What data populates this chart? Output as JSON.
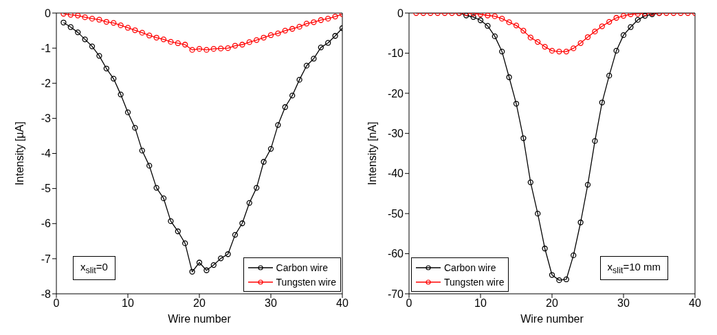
{
  "chart_data": [
    {
      "type": "line",
      "xlabel": "Wire number",
      "ylabel": "Intensity [µA]",
      "xlim": [
        0,
        40
      ],
      "xticks": [
        0,
        10,
        20,
        30,
        40
      ],
      "ylim": [
        -8,
        0
      ],
      "yticks": [
        -8,
        -7,
        -6,
        -5,
        -4,
        -3,
        -2,
        -1,
        0
      ],
      "grid": false,
      "legend": "bottom right",
      "marker": "circle",
      "annotations": [
        "x$_{slit}$=0"
      ],
      "x": [
        1,
        2,
        3,
        4,
        5,
        6,
        7,
        8,
        9,
        10,
        11,
        12,
        13,
        14,
        15,
        16,
        17,
        18,
        19,
        20,
        21,
        22,
        23,
        24,
        25,
        26,
        27,
        28,
        29,
        30,
        31,
        32,
        33,
        34,
        35,
        36,
        37,
        38,
        39,
        40
      ],
      "series": [
        {
          "name": "Carbon wire",
          "color": "#000000",
          "values": [
            -0.27,
            -0.4,
            -0.55,
            -0.75,
            -0.95,
            -1.22,
            -1.58,
            -1.87,
            -2.32,
            -2.83,
            -3.27,
            -3.92,
            -4.35,
            -4.98,
            -5.28,
            -5.93,
            -6.22,
            -6.56,
            -7.37,
            -7.11,
            -7.33,
            -7.18,
            -6.99,
            -6.87,
            -6.32,
            -5.99,
            -5.41,
            -4.98,
            -4.24,
            -3.87,
            -3.19,
            -2.68,
            -2.35,
            -1.9,
            -1.5,
            -1.3,
            -0.98,
            -0.85,
            -0.65,
            -0.43
          ]
        },
        {
          "name": "Tungsten wire",
          "color": "#ff0000",
          "values": [
            -0.02,
            -0.05,
            -0.07,
            -0.12,
            -0.16,
            -0.19,
            -0.25,
            -0.28,
            -0.35,
            -0.42,
            -0.49,
            -0.56,
            -0.64,
            -0.7,
            -0.75,
            -0.82,
            -0.86,
            -0.9,
            -1.05,
            -1.02,
            -1.05,
            -1.02,
            -1.01,
            -1.0,
            -0.93,
            -0.9,
            -0.83,
            -0.77,
            -0.7,
            -0.63,
            -0.58,
            -0.5,
            -0.45,
            -0.39,
            -0.3,
            -0.26,
            -0.2,
            -0.16,
            -0.1,
            -0.03
          ]
        }
      ]
    },
    {
      "type": "line",
      "xlabel": "Wire number",
      "ylabel": "Intensity [nA]",
      "xlim": [
        0,
        40
      ],
      "xticks": [
        0,
        10,
        20,
        30,
        40
      ],
      "ylim": [
        -70,
        0
      ],
      "yticks": [
        -70,
        -60,
        -50,
        -40,
        -30,
        -20,
        -10,
        0
      ],
      "grid": false,
      "legend": "bottom left",
      "marker": "circle",
      "annotations": [
        "x$_{slit}$=10 mm"
      ],
      "x": [
        1,
        2,
        3,
        4,
        5,
        6,
        7,
        8,
        9,
        10,
        11,
        12,
        13,
        14,
        15,
        16,
        17,
        18,
        19,
        20,
        21,
        22,
        23,
        24,
        25,
        26,
        27,
        28,
        29,
        30,
        31,
        32,
        33,
        34,
        35,
        36,
        37,
        38,
        39,
        40
      ],
      "series": [
        {
          "name": "Carbon wire",
          "color": "#000000",
          "values": [
            null,
            null,
            null,
            null,
            null,
            null,
            0,
            -0.6,
            -1,
            -1.8,
            -3.2,
            -5.8,
            -9.6,
            -16,
            -22.6,
            -31.2,
            -42.2,
            -50,
            -58.7,
            -65.3,
            -66.6,
            -66.4,
            -60.4,
            -52.2,
            -42.8,
            -31.9,
            -22.3,
            -15.6,
            -9.4,
            -5.5,
            -3.5,
            -1.7,
            -0.7,
            -0.3,
            0,
            null,
            null,
            null,
            null,
            null
          ]
        },
        {
          "name": "Tungsten wire",
          "color": "#ff0000",
          "values": [
            0,
            0,
            0,
            0,
            0,
            0,
            0,
            0,
            -0.1,
            -0.3,
            -0.6,
            -0.8,
            -1.4,
            -2.3,
            -3.1,
            -4.4,
            -6.1,
            -7.2,
            -8.4,
            -9.4,
            -9.6,
            -9.6,
            -8.8,
            -7.5,
            -6,
            -4.6,
            -3.3,
            -2.2,
            -1.2,
            -0.7,
            -0.3,
            -0.2,
            -0.1,
            0,
            0,
            0,
            0,
            0,
            0,
            0
          ]
        }
      ]
    }
  ]
}
